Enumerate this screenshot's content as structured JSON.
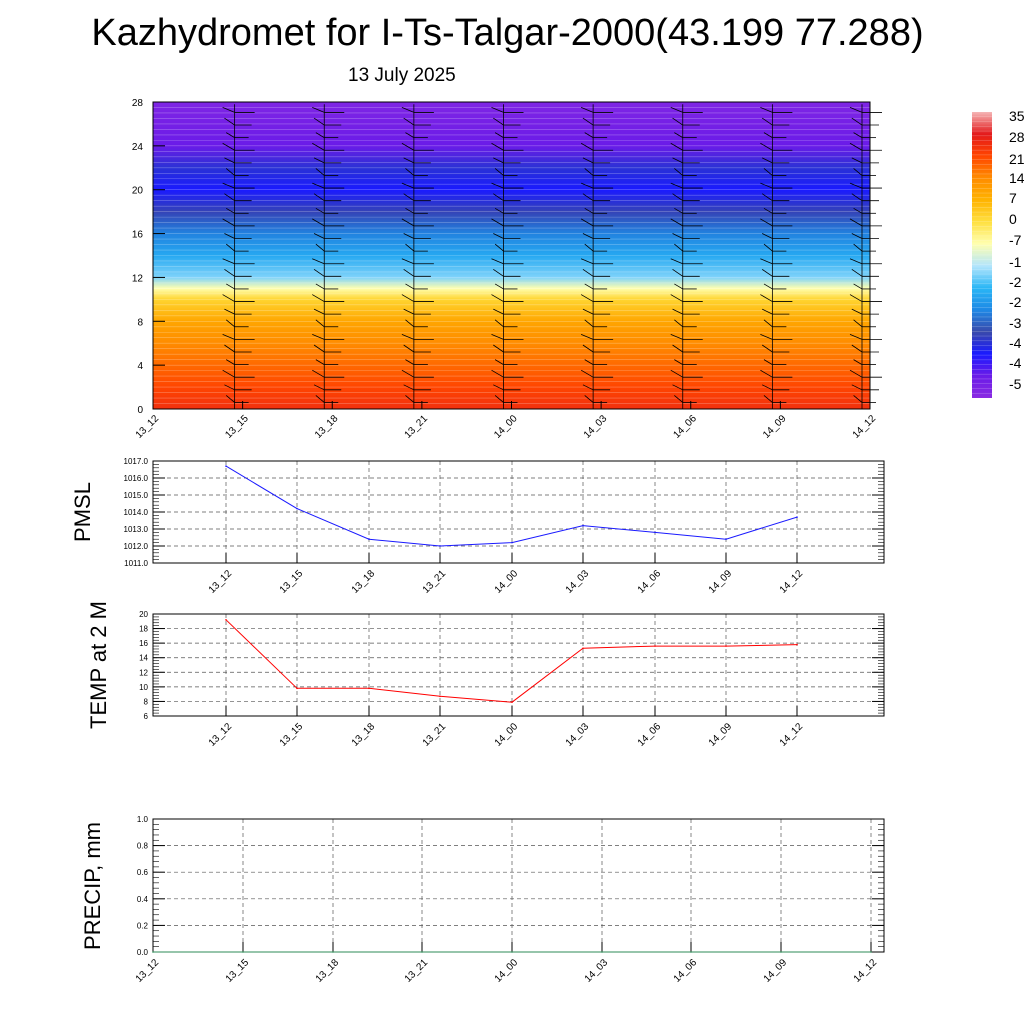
{
  "header": {
    "title": "Kazhydromet for I-Ts-Talgar-2000(43.199 77.288)",
    "subtitle": "13 July 2025"
  },
  "colors": {
    "pmsl_line": "#1a1aff",
    "temp_line": "#ff0000",
    "precip_line": "#2e8b57",
    "grid": "#555555",
    "barb": "#000000"
  },
  "chart_data": [
    {
      "type": "heatmap",
      "x_tick_labels": [
        "13_12",
        "13_15",
        "13_18",
        "13_21",
        "14_00",
        "14_03",
        "14_06",
        "14_09",
        "14_12"
      ],
      "y_tick_labels": [
        "0",
        "4",
        "8",
        "12",
        "16",
        "20",
        "24",
        "28"
      ],
      "ylim": [
        0,
        28
      ],
      "levels_y": [
        0,
        2,
        4,
        6,
        8,
        10,
        11,
        12,
        14,
        16,
        18,
        20,
        22,
        24,
        26,
        28
      ],
      "temperature_profile": [
        24,
        20,
        16,
        12,
        8,
        3,
        -3,
        -13,
        -21,
        -29,
        -39,
        -46,
        -42,
        -50,
        -52,
        -54
      ],
      "colorbar_labels": [
        "35",
        "28",
        "21",
        "14",
        "7",
        "0",
        "-7",
        "-1",
        "-2",
        "-2",
        "-3",
        "-4",
        "-4",
        "-5"
      ],
      "colorbar_stops": [
        "#f5b5b5",
        "#e31a1c",
        "#ff4500",
        "#ff8c00",
        "#ffb300",
        "#ffe040",
        "#ffffb0",
        "#b3e5fc",
        "#29b6f6",
        "#1e88e5",
        "#3949ab",
        "#1a1aff",
        "#6a1be8",
        "#8a2be2"
      ],
      "grid": false,
      "wind_barbs": true
    },
    {
      "type": "line",
      "ylabel": "PMSL",
      "x": [
        "13_12",
        "13_15",
        "13_18",
        "13_21",
        "14_00",
        "14_03",
        "14_06",
        "14_09",
        "14_12"
      ],
      "values": [
        1016.7,
        1014.2,
        1012.4,
        1012.0,
        1012.2,
        1013.2,
        1012.8,
        1012.4,
        1013.7
      ],
      "y_tick_labels": [
        "1011.0",
        "1012.0",
        "1013.0",
        "1014.0",
        "1015.0",
        "1016.0",
        "1017.0"
      ],
      "ylim": [
        1011,
        1017
      ],
      "grid": true
    },
    {
      "type": "line",
      "ylabel": "TEMP at 2 M",
      "x": [
        "13_12",
        "13_15",
        "13_18",
        "13_21",
        "14_00",
        "14_03",
        "14_06",
        "14_09",
        "14_12"
      ],
      "values": [
        19.2,
        9.8,
        9.8,
        8.7,
        7.9,
        15.3,
        15.6,
        15.6,
        15.8
      ],
      "y_tick_labels": [
        "6",
        "8",
        "10",
        "12",
        "14",
        "16",
        "18",
        "20"
      ],
      "ylim": [
        6,
        20
      ],
      "grid": true
    },
    {
      "type": "line",
      "ylabel": "PRECIP, mm",
      "x": [
        "13_12",
        "13_15",
        "13_18",
        "13_21",
        "14_00",
        "14_03",
        "14_06",
        "14_09",
        "14_12"
      ],
      "values": [
        0,
        0,
        0,
        0,
        0,
        0,
        0,
        0,
        0
      ],
      "y_tick_labels": [
        "0.0",
        "0.2",
        "0.4",
        "0.6",
        "0.8",
        "1.0"
      ],
      "ylim": [
        0,
        1
      ],
      "grid": true
    }
  ]
}
